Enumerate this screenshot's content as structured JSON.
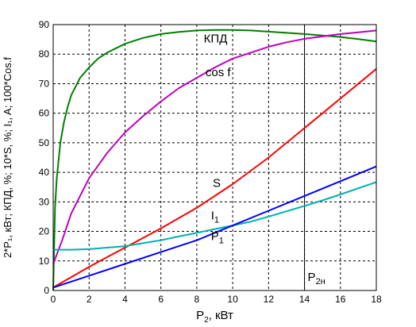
{
  "chart_data": {
    "type": "line",
    "xlabel": "P",
    "xlabel_sub": "2",
    "xlabel_unit": ", кВт",
    "ylabel": "2*P₁, кВт; КПД, %; 10*S, %; I₁, A; 100*Cos.f",
    "xlim": [
      0,
      18
    ],
    "ylim": [
      0,
      90
    ],
    "x_ticks": [
      0,
      2,
      4,
      6,
      8,
      10,
      12,
      14,
      16,
      18
    ],
    "y_ticks": [
      0,
      10,
      20,
      30,
      40,
      50,
      60,
      70,
      80,
      90
    ],
    "grid": true,
    "vline": {
      "x": 14,
      "label": "P",
      "label_sub": "2н"
    },
    "series": [
      {
        "name": "КПД",
        "color": "#008000",
        "label_at": [
          8.3,
          84
        ],
        "x": [
          0,
          0.1,
          0.2,
          0.4,
          0.6,
          0.8,
          1,
          1.5,
          2,
          2.5,
          3,
          3.5,
          4,
          5,
          6,
          7,
          8,
          9,
          10,
          11,
          12,
          13,
          14,
          15,
          16,
          17,
          18
        ],
        "y": [
          0,
          28,
          38,
          50,
          57,
          62,
          66,
          72,
          75.5,
          78.5,
          80.5,
          82,
          83.5,
          85.5,
          86.8,
          87.5,
          88,
          88.2,
          88.2,
          88,
          87.6,
          87.2,
          86.8,
          86.3,
          85.8,
          85.1,
          84.3
        ]
      },
      {
        "name": "cos f",
        "color": "#c000c0",
        "label_at": [
          8.4,
          72.5
        ],
        "x": [
          0,
          0.5,
          1,
          2,
          3,
          4,
          5,
          6,
          7,
          8,
          9,
          10,
          11,
          12,
          13,
          14,
          15,
          16,
          17,
          18
        ],
        "y": [
          9,
          17,
          26,
          38,
          46.5,
          53.5,
          59,
          64,
          68.5,
          72,
          75.5,
          78.5,
          80.5,
          82.5,
          84,
          85.2,
          86,
          86.8,
          87.4,
          88
        ]
      },
      {
        "name": "S",
        "color": "#ff0000",
        "label_at": [
          8.8,
          35
        ],
        "x": [
          0,
          2,
          4,
          6,
          8,
          10,
          12,
          14,
          16,
          18
        ],
        "y": [
          1,
          8,
          14.5,
          21,
          28,
          36,
          45,
          55,
          65,
          75
        ]
      },
      {
        "name": "I",
        "name_sub": "1",
        "color": "#00b0b0",
        "label_at": [
          8.7,
          24
        ],
        "x": [
          0,
          1,
          2,
          3,
          4,
          5,
          6,
          7,
          8,
          9,
          10,
          11,
          12,
          13,
          14,
          15,
          16,
          17,
          18
        ],
        "y": [
          13.8,
          13.8,
          14,
          14.5,
          15,
          16,
          17,
          18.3,
          19.5,
          20.8,
          22,
          23.3,
          25,
          26.8,
          28.6,
          30.5,
          32.5,
          34.6,
          36.7
        ]
      },
      {
        "name": "P",
        "name_sub": "1",
        "color": "#0000ff",
        "label_at": [
          8.7,
          17
        ],
        "x": [
          0,
          2,
          4,
          6,
          8,
          10,
          12,
          14,
          16,
          18
        ],
        "y": [
          1,
          5,
          9,
          13,
          17,
          22,
          27,
          32,
          37,
          42
        ]
      }
    ]
  }
}
